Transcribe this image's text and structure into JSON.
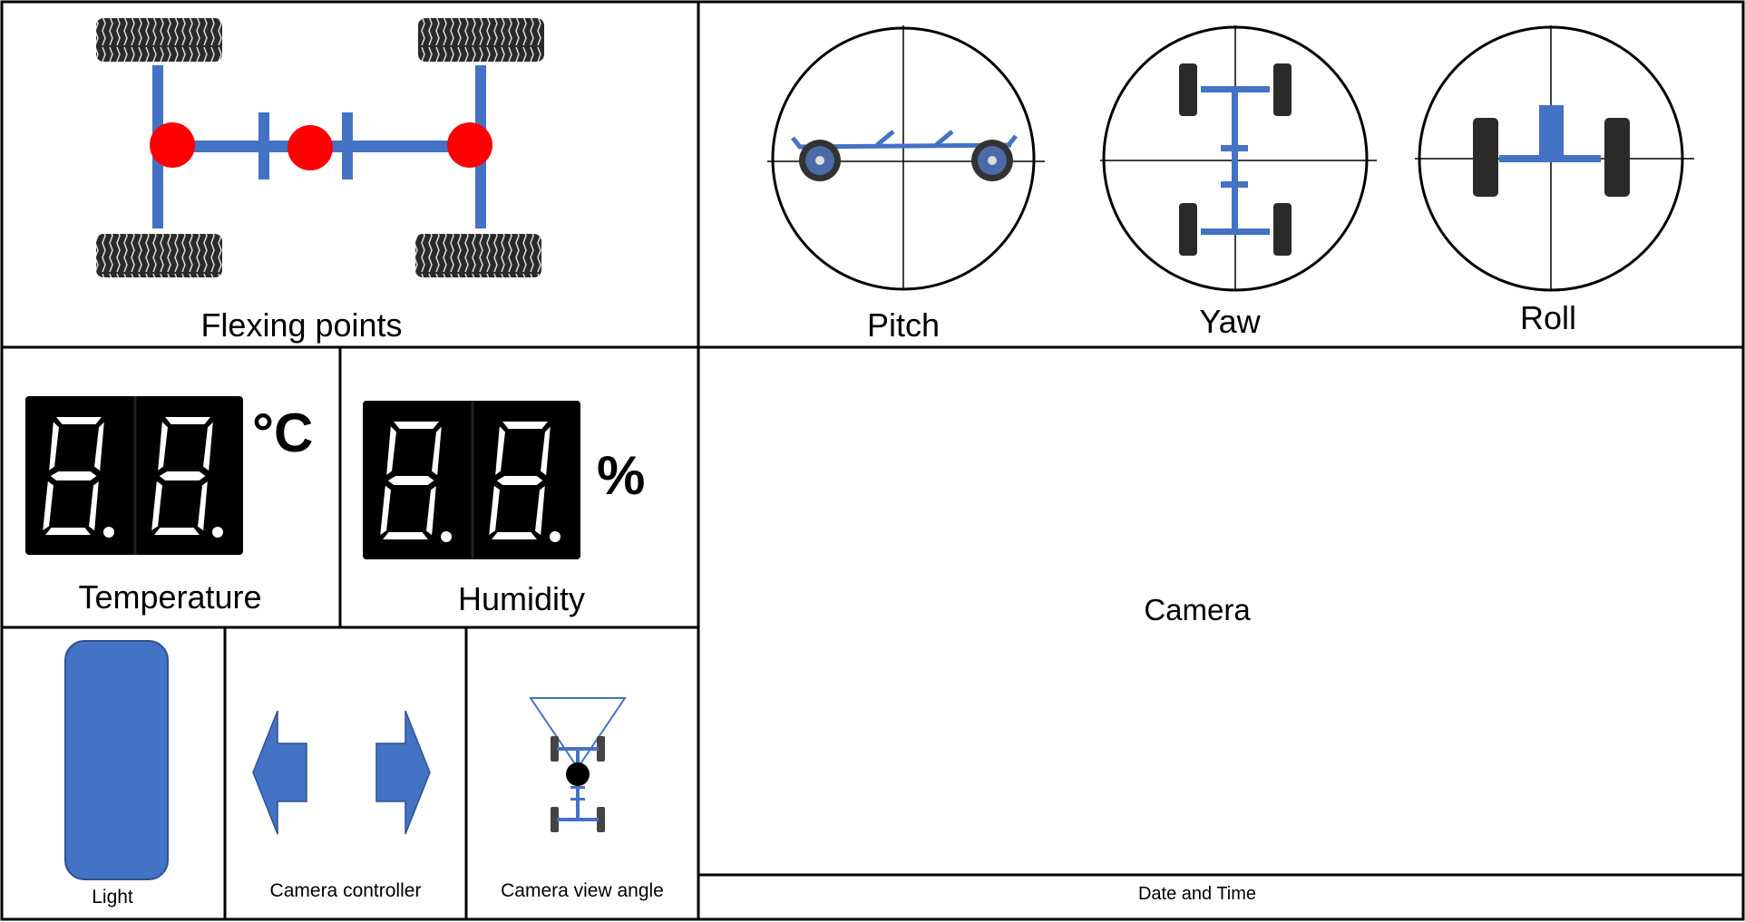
{
  "panels": {
    "flexing_points": {
      "label": "Flexing points"
    },
    "orientation": {
      "pitch_label": "Pitch",
      "yaw_label": "Yaw",
      "roll_label": "Roll"
    },
    "temperature": {
      "label": "Temperature",
      "unit": "°C",
      "display": "8.8."
    },
    "humidity": {
      "label": "Humidity",
      "unit": "%",
      "display": "8.8."
    },
    "light": {
      "label": "Light"
    },
    "camera_controller": {
      "label": "Camera controller"
    },
    "camera_view_angle": {
      "label": "Camera view angle"
    },
    "camera": {
      "label": "Camera"
    },
    "date_time": {
      "label": "Date and Time"
    }
  },
  "colors": {
    "accent_blue": "#4472C4",
    "flex_point_red": "#FF0000",
    "display_bg": "#000000",
    "segment": "#FFFFFF"
  },
  "icons": [
    "tire-icon",
    "wheel-icon",
    "left-arrow-icon",
    "right-arrow-icon",
    "camera-dot-icon"
  ]
}
